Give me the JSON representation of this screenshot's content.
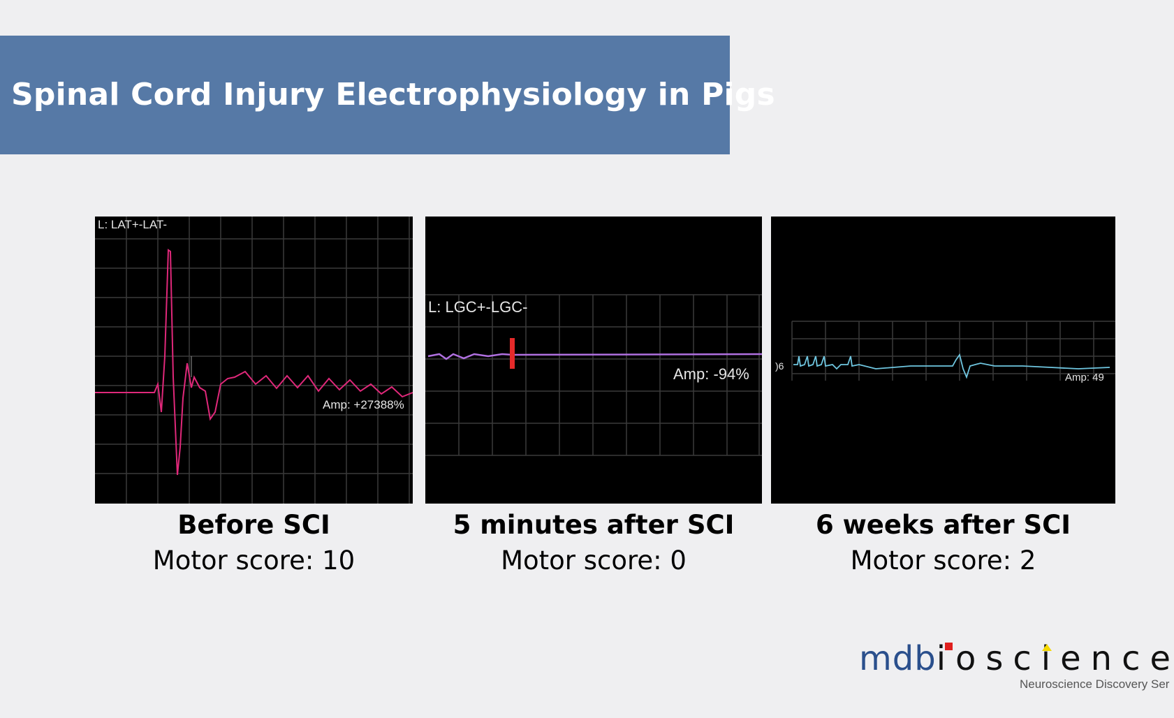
{
  "header": {
    "title": "Spinal Cord Injury Electrophysiology in Pigs"
  },
  "panels": [
    {
      "trace_label": "L: LAT+-LAT-",
      "amp_label": "Amp: +27388%",
      "trace_color": "#e0287a",
      "caption_title": "Before SCI",
      "caption_score": "Motor score: 10"
    },
    {
      "trace_label": "L: LGC+-LGC-",
      "amp_label": "Amp: -94%",
      "trace_color": "#b070e0",
      "caption_title": "5 minutes after SCI",
      "caption_score": "Motor score: 0"
    },
    {
      "trace_label": "",
      "amp_label": "Amp: 49",
      "trace_color": "#6fc6e0",
      "caption_title": "6 weeks after SCI",
      "caption_score": "Motor score: 2"
    }
  ],
  "logo": {
    "brand_prefix": "mdb",
    "brand_rest": "ioscience",
    "tagline": "Neuroscience Discovery Ser"
  }
}
